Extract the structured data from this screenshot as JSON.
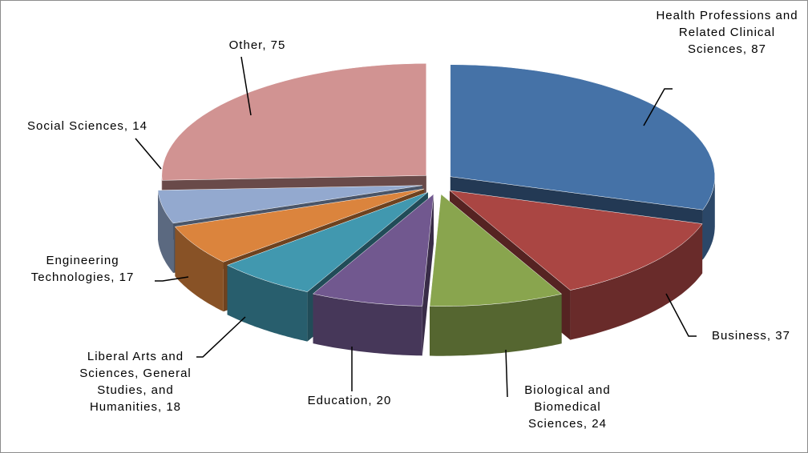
{
  "chart_data": {
    "type": "pie",
    "value_labels": [
      "Health Professions and Related Clinical Sciences, 87",
      "Business, 37",
      "Biological and Biomedical Sciences, 24",
      "Education, 20",
      "Liberal Arts and Sciences, General Studies, and Humanities, 18",
      "Engineering Technologies, 17",
      "Social Sciences, 14",
      "Other, 75"
    ],
    "values": [
      87,
      37,
      24,
      20,
      18,
      17,
      14,
      75
    ],
    "colors": [
      "#4572a7",
      "#aa4643",
      "#89a54e",
      "#71588f",
      "#4198af",
      "#db843d",
      "#93a9cf",
      "#d19392"
    ]
  }
}
